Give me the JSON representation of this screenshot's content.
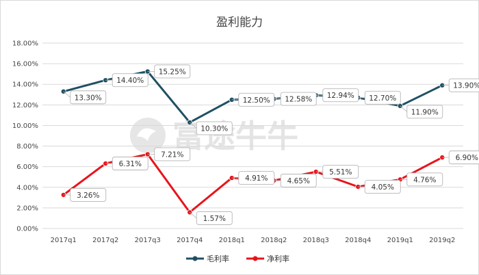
{
  "chart_data": {
    "type": "line",
    "title": "盈利能力",
    "categories": [
      "2017q1",
      "2017q2",
      "2017q3",
      "2017q4",
      "2018q1",
      "2018q2",
      "2018q3",
      "2018q4",
      "2019q1",
      "2019q2"
    ],
    "series": [
      {
        "name": "毛利率",
        "color": "#1f5063",
        "values": [
          13.3,
          14.4,
          15.25,
          10.3,
          12.5,
          12.58,
          12.94,
          12.7,
          11.9,
          13.9
        ],
        "labels": [
          "13.30%",
          "14.40%",
          "15.25%",
          "10.30%",
          "12.50%",
          "12.58%",
          "12.94%",
          "12.70%",
          "11.90%",
          "13.90%"
        ],
        "label_placement": [
          "right-below",
          "right",
          "right",
          "right-below",
          "right",
          "right",
          "right",
          "right",
          "right-below",
          "right"
        ]
      },
      {
        "name": "净利率",
        "color": "#e8141a",
        "values": [
          3.26,
          6.31,
          7.21,
          1.57,
          4.91,
          4.65,
          5.51,
          4.05,
          4.76,
          6.9
        ],
        "labels": [
          "3.26%",
          "6.31%",
          "7.21%",
          "1.57%",
          "4.91%",
          "4.65%",
          "5.51%",
          "4.05%",
          "4.76%",
          "6.90%"
        ],
        "label_placement": [
          "right",
          "right",
          "right",
          "right-below",
          "right",
          "right",
          "right",
          "right",
          "right",
          "right"
        ]
      }
    ],
    "ylim": [
      0,
      18
    ],
    "yticks": [
      0,
      2,
      4,
      6,
      8,
      10,
      12,
      14,
      16,
      18
    ],
    "ytick_labels": [
      "0.00%",
      "2.00%",
      "4.00%",
      "6.00%",
      "8.00%",
      "10.00%",
      "12.00%",
      "14.00%",
      "16.00%",
      "18.00%"
    ],
    "grid": true,
    "legend_position": "bottom-center",
    "watermark": "富途牛牛"
  }
}
